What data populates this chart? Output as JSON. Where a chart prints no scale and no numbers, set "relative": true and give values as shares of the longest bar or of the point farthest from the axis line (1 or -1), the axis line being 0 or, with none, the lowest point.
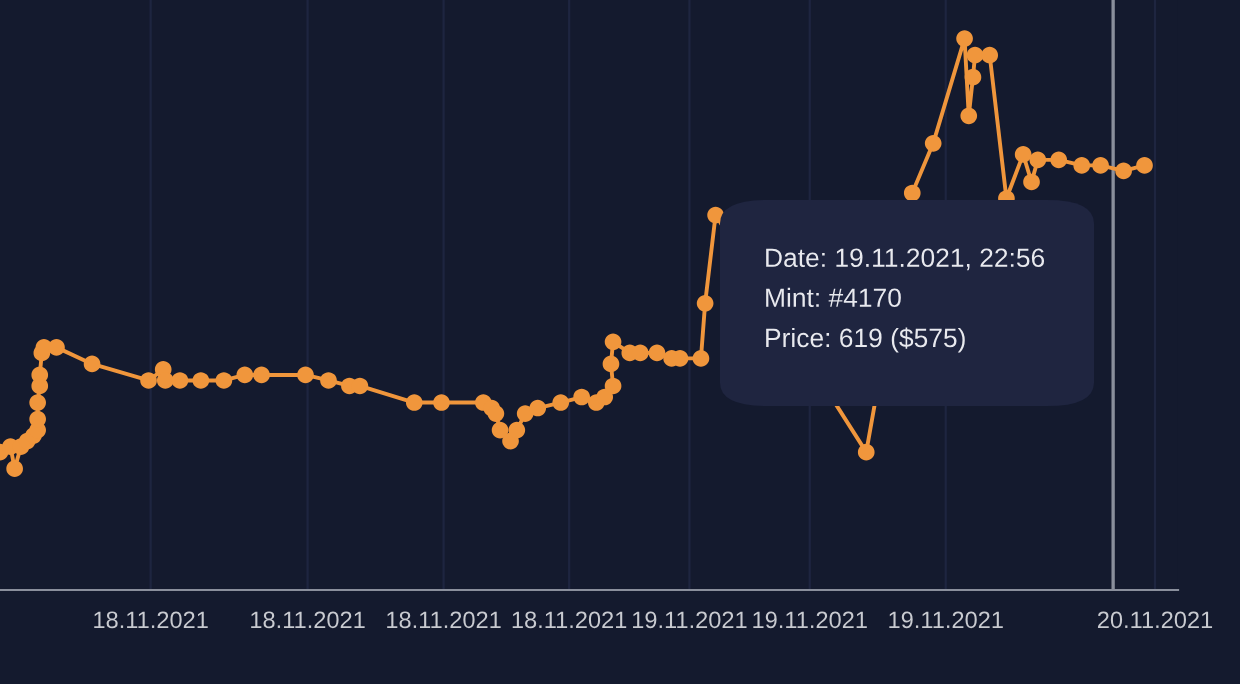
{
  "chart_data": {
    "type": "line",
    "relative": true,
    "marker": "circle",
    "line_style": "solid",
    "grid": "x",
    "tick_labels": "x",
    "legend": false,
    "xlim": [
      "2021-11-17T16:48",
      "2021-11-20T01:06"
    ],
    "xticks": [
      {
        "value": "2021-11-18T00:00",
        "label": "18.11.2021"
      },
      {
        "value": "2021-11-18T07:30",
        "label": "18.11.2021"
      },
      {
        "value": "2021-11-18T14:00",
        "label": "18.11.2021"
      },
      {
        "value": "2021-11-18T20:00",
        "label": "18.11.2021"
      },
      {
        "value": "2021-11-19T01:45",
        "label": "19.11.2021"
      },
      {
        "value": "2021-11-19T07:30",
        "label": "19.11.2021"
      },
      {
        "value": "2021-11-19T14:00",
        "label": "19.11.2021"
      },
      {
        "value": "2021-11-20T00:00",
        "label": "20.11.2021"
      }
    ],
    "series": [
      {
        "color": "#f0963c",
        "x": [
          "2021-11-17T16:48",
          "2021-11-17T17:18",
          "2021-11-17T17:30",
          "2021-11-17T17:48",
          "2021-11-17T18:06",
          "2021-11-17T18:24",
          "2021-11-17T18:36",
          "2021-11-17T18:36",
          "2021-11-17T18:36",
          "2021-11-17T18:42",
          "2021-11-17T18:42",
          "2021-11-17T18:48",
          "2021-11-17T18:54",
          "2021-11-17T19:30",
          "2021-11-17T21:12",
          "2021-11-17T23:54",
          "2021-11-18T00:36",
          "2021-11-18T00:42",
          "2021-11-18T01:24",
          "2021-11-18T02:24",
          "2021-11-18T03:30",
          "2021-11-18T04:30",
          "2021-11-18T05:18",
          "2021-11-18T07:24",
          "2021-11-18T08:30",
          "2021-11-18T09:30",
          "2021-11-18T10:00",
          "2021-11-18T12:36",
          "2021-11-18T13:54",
          "2021-11-18T15:54",
          "2021-11-18T16:18",
          "2021-11-18T16:30",
          "2021-11-18T16:42",
          "2021-11-18T17:12",
          "2021-11-18T17:30",
          "2021-11-18T17:54",
          "2021-11-18T18:30",
          "2021-11-18T19:36",
          "2021-11-18T20:36",
          "2021-11-18T21:18",
          "2021-11-18T21:42",
          "2021-11-18T22:06",
          "2021-11-18T22:00",
          "2021-11-18T22:06",
          "2021-11-18T22:54",
          "2021-11-18T23:24",
          "2021-11-19T00:12",
          "2021-11-19T00:54",
          "2021-11-19T01:18",
          "2021-11-19T02:18",
          "2021-11-19T02:30",
          "2021-11-19T03:00",
          "2021-11-19T10:12",
          "2021-11-19T12:24",
          "2021-11-19T13:24",
          "2021-11-19T14:54",
          "2021-11-19T15:06",
          "2021-11-19T15:18",
          "2021-11-19T15:24",
          "2021-11-19T16:06",
          "2021-11-19T16:54",
          "2021-11-19T17:42",
          "2021-11-19T18:06",
          "2021-11-19T18:24",
          "2021-11-19T19:24",
          "2021-11-19T20:30",
          "2021-11-19T21:24",
          "2021-11-19T22:30",
          "2021-11-19T23:30"
        ],
        "values": [
          0.25,
          0.26,
          0.22,
          0.26,
          0.27,
          0.28,
          0.29,
          0.31,
          0.34,
          0.37,
          0.39,
          0.43,
          0.44,
          0.44,
          0.41,
          0.38,
          0.4,
          0.38,
          0.38,
          0.38,
          0.38,
          0.39,
          0.39,
          0.39,
          0.38,
          0.37,
          0.37,
          0.34,
          0.34,
          0.34,
          0.33,
          0.32,
          0.29,
          0.27,
          0.29,
          0.32,
          0.33,
          0.34,
          0.35,
          0.34,
          0.35,
          0.37,
          0.41,
          0.45,
          0.43,
          0.43,
          0.43,
          0.42,
          0.42,
          0.42,
          0.52,
          0.68,
          0.25,
          0.72,
          0.81,
          1.0,
          0.86,
          0.93,
          0.97,
          0.97,
          0.71,
          0.79,
          0.74,
          0.78,
          0.78,
          0.77,
          0.77,
          0.76,
          0.77
        ]
      }
    ],
    "ref_lines": [
      {
        "axis": "x",
        "value": "2021-11-19T22:00",
        "color": "#8a8f9c"
      }
    ],
    "annotations": [
      "Date: 19.11.2021, 22:56",
      "Mint: #4170",
      "Price: 619 ($575)"
    ]
  }
}
